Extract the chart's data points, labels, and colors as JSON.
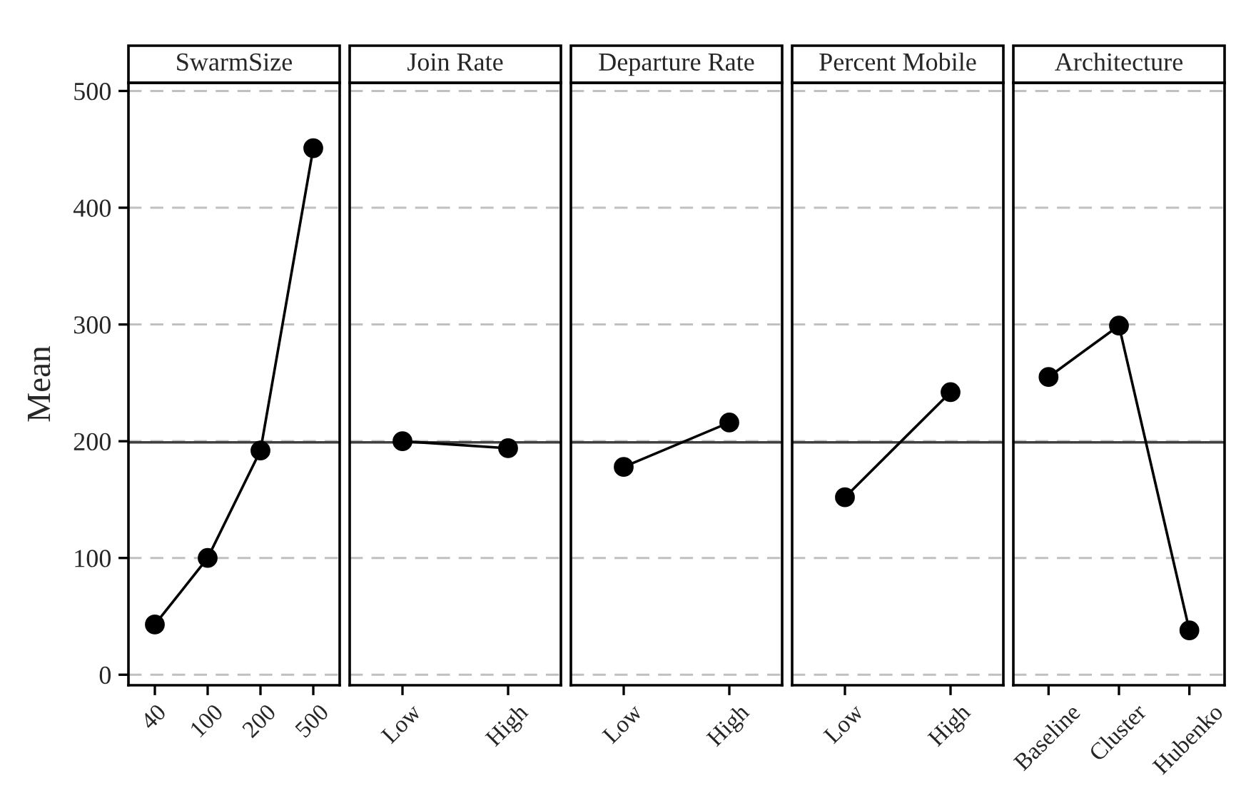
{
  "chart_data": [
    {
      "type": "line",
      "title": "SwarmSize",
      "ylabel": "Mean",
      "categories": [
        "40",
        "100",
        "200",
        "500"
      ],
      "series": [
        {
          "color": "#000000",
          "values": [
            43,
            100,
            192,
            451
          ]
        }
      ],
      "ylim": [
        -9,
        507
      ],
      "yticks": [
        0,
        100,
        200,
        300,
        400,
        500
      ],
      "grid": "y",
      "marker": "circle",
      "line_style": "solid",
      "ref_lines": [
        {
          "axis": "y",
          "value": 199
        }
      ]
    },
    {
      "type": "line",
      "title": "Join Rate",
      "categories": [
        "Low",
        "High"
      ],
      "series": [
        {
          "color": "#000000",
          "values": [
            200,
            194
          ]
        }
      ],
      "ylim": [
        -9,
        507
      ],
      "yticks": [
        0,
        100,
        200,
        300,
        400,
        500
      ],
      "tick_labels": "x",
      "grid": "y",
      "marker": "circle",
      "line_style": "solid",
      "ref_lines": [
        {
          "axis": "y",
          "value": 199
        }
      ]
    },
    {
      "type": "line",
      "title": "Departure Rate",
      "categories": [
        "Low",
        "High"
      ],
      "series": [
        {
          "color": "#000000",
          "values": [
            178,
            216
          ]
        }
      ],
      "ylim": [
        -9,
        507
      ],
      "yticks": [
        0,
        100,
        200,
        300,
        400,
        500
      ],
      "tick_labels": "x",
      "grid": "y",
      "marker": "circle",
      "line_style": "solid",
      "ref_lines": [
        {
          "axis": "y",
          "value": 199
        }
      ]
    },
    {
      "type": "line",
      "title": "Percent Mobile",
      "categories": [
        "Low",
        "High"
      ],
      "series": [
        {
          "color": "#000000",
          "values": [
            152,
            242
          ]
        }
      ],
      "ylim": [
        -9,
        507
      ],
      "yticks": [
        0,
        100,
        200,
        300,
        400,
        500
      ],
      "tick_labels": "x",
      "grid": "y",
      "marker": "circle",
      "line_style": "solid",
      "ref_lines": [
        {
          "axis": "y",
          "value": 199
        }
      ]
    },
    {
      "type": "line",
      "title": "Architecture",
      "categories": [
        "Baseline",
        "Cluster",
        "Hubenko"
      ],
      "series": [
        {
          "color": "#000000",
          "values": [
            255,
            299,
            38
          ]
        }
      ],
      "ylim": [
        -9,
        507
      ],
      "yticks": [
        0,
        100,
        200,
        300,
        400,
        500
      ],
      "tick_labels": "x",
      "grid": "y",
      "marker": "circle",
      "line_style": "solid",
      "ref_lines": [
        {
          "axis": "y",
          "value": 199
        }
      ]
    }
  ]
}
